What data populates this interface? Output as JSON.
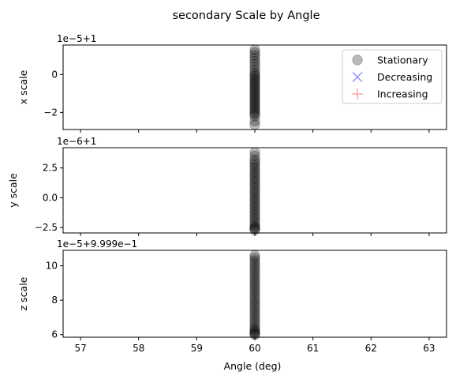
{
  "figure": {
    "title": "secondary Scale by Angle",
    "xlabel": "Angle (deg)"
  },
  "chart_data": [
    {
      "type": "scatter",
      "ylabel": "x scale",
      "offset_text": "1e−5+1",
      "xlim": [
        56.7,
        63.3
      ],
      "ylim": [
        -2.9,
        1.55
      ],
      "xticks": [
        "57",
        "58",
        "59",
        "60",
        "61",
        "62",
        "63"
      ],
      "yticks": [
        {
          "value": -2,
          "label": "−2"
        },
        {
          "value": 0,
          "label": "0"
        }
      ],
      "legend": {
        "placement": "top-right",
        "entries": [
          {
            "name": "Stationary",
            "marker": "circle",
            "color": "#808080"
          },
          {
            "name": "Decreasing",
            "marker": "x",
            "color": "#8f8fff"
          },
          {
            "name": "Increasing",
            "marker": "plus",
            "color": "#ff9f9f"
          }
        ]
      },
      "series": [
        {
          "name": "Stationary",
          "x": [
            60,
            60,
            60,
            60,
            60,
            60,
            60,
            60,
            60,
            60,
            60,
            60,
            60,
            60,
            60,
            60,
            60,
            60,
            60,
            60,
            60,
            60,
            60,
            60,
            60,
            60,
            60,
            60,
            60,
            60,
            60,
            60,
            60,
            60
          ],
          "y": [
            1.3,
            1.15,
            1.0,
            0.85,
            0.7,
            0.55,
            0.4,
            0.25,
            0.1,
            0.0,
            -0.1,
            -0.2,
            -0.3,
            -0.4,
            -0.5,
            -0.6,
            -0.7,
            -0.8,
            -0.9,
            -1.0,
            -1.1,
            -1.2,
            -1.3,
            -1.4,
            -1.5,
            -1.6,
            -1.7,
            -1.8,
            -1.9,
            -2.0,
            -2.1,
            -2.2,
            -2.45,
            -2.65
          ]
        }
      ]
    },
    {
      "type": "scatter",
      "ylabel": "y scale",
      "offset_text": "1e−6+1",
      "xlim": [
        56.7,
        63.3
      ],
      "ylim": [
        -2.95,
        4.2
      ],
      "xticks": [
        "57",
        "58",
        "59",
        "60",
        "61",
        "62",
        "63"
      ],
      "yticks": [
        {
          "value": -2.5,
          "label": "−2.5"
        },
        {
          "value": 0,
          "label": "0.0"
        },
        {
          "value": 2.5,
          "label": "2.5"
        }
      ],
      "series": [
        {
          "name": "Stationary",
          "x": [
            60,
            60,
            60,
            60,
            60,
            60,
            60,
            60,
            60,
            60,
            60,
            60,
            60,
            60,
            60,
            60,
            60,
            60,
            60,
            60,
            60,
            60,
            60,
            60,
            60,
            60,
            60,
            60,
            60,
            60,
            60,
            60,
            60,
            60
          ],
          "y": [
            3.8,
            3.5,
            3.2,
            3.0,
            2.8,
            2.6,
            2.4,
            2.2,
            2.0,
            1.8,
            1.6,
            1.4,
            1.2,
            1.0,
            0.8,
            0.6,
            0.4,
            0.2,
            0.0,
            -0.2,
            -0.4,
            -0.6,
            -0.8,
            -1.0,
            -1.2,
            -1.4,
            -1.6,
            -1.8,
            -2.0,
            -2.2,
            -2.4,
            -2.5,
            -2.6,
            -2.7
          ]
        }
      ]
    },
    {
      "type": "scatter",
      "ylabel": "z scale",
      "offset_text": "1e−5+9.999e−1",
      "xlim": [
        56.7,
        63.3
      ],
      "ylim": [
        5.85,
        10.9
      ],
      "xticks": [
        "57",
        "58",
        "59",
        "60",
        "61",
        "62",
        "63"
      ],
      "yticks": [
        {
          "value": 6,
          "label": "6"
        },
        {
          "value": 8,
          "label": "8"
        },
        {
          "value": 10,
          "label": "10"
        }
      ],
      "series": [
        {
          "name": "Stationary",
          "x": [
            60,
            60,
            60,
            60,
            60,
            60,
            60,
            60,
            60,
            60,
            60,
            60,
            60,
            60,
            60,
            60,
            60,
            60,
            60,
            60,
            60,
            60,
            60,
            60,
            60,
            60,
            60,
            60,
            60,
            60,
            60,
            60,
            60,
            60
          ],
          "y": [
            10.6,
            10.45,
            10.3,
            10.15,
            10.0,
            9.85,
            9.7,
            9.55,
            9.4,
            9.25,
            9.1,
            8.95,
            8.8,
            8.65,
            8.5,
            8.35,
            8.2,
            8.05,
            7.9,
            7.75,
            7.6,
            7.45,
            7.3,
            7.15,
            7.0,
            6.85,
            6.7,
            6.55,
            6.4,
            6.3,
            6.2,
            6.1,
            6.05,
            6.0
          ]
        }
      ]
    }
  ]
}
